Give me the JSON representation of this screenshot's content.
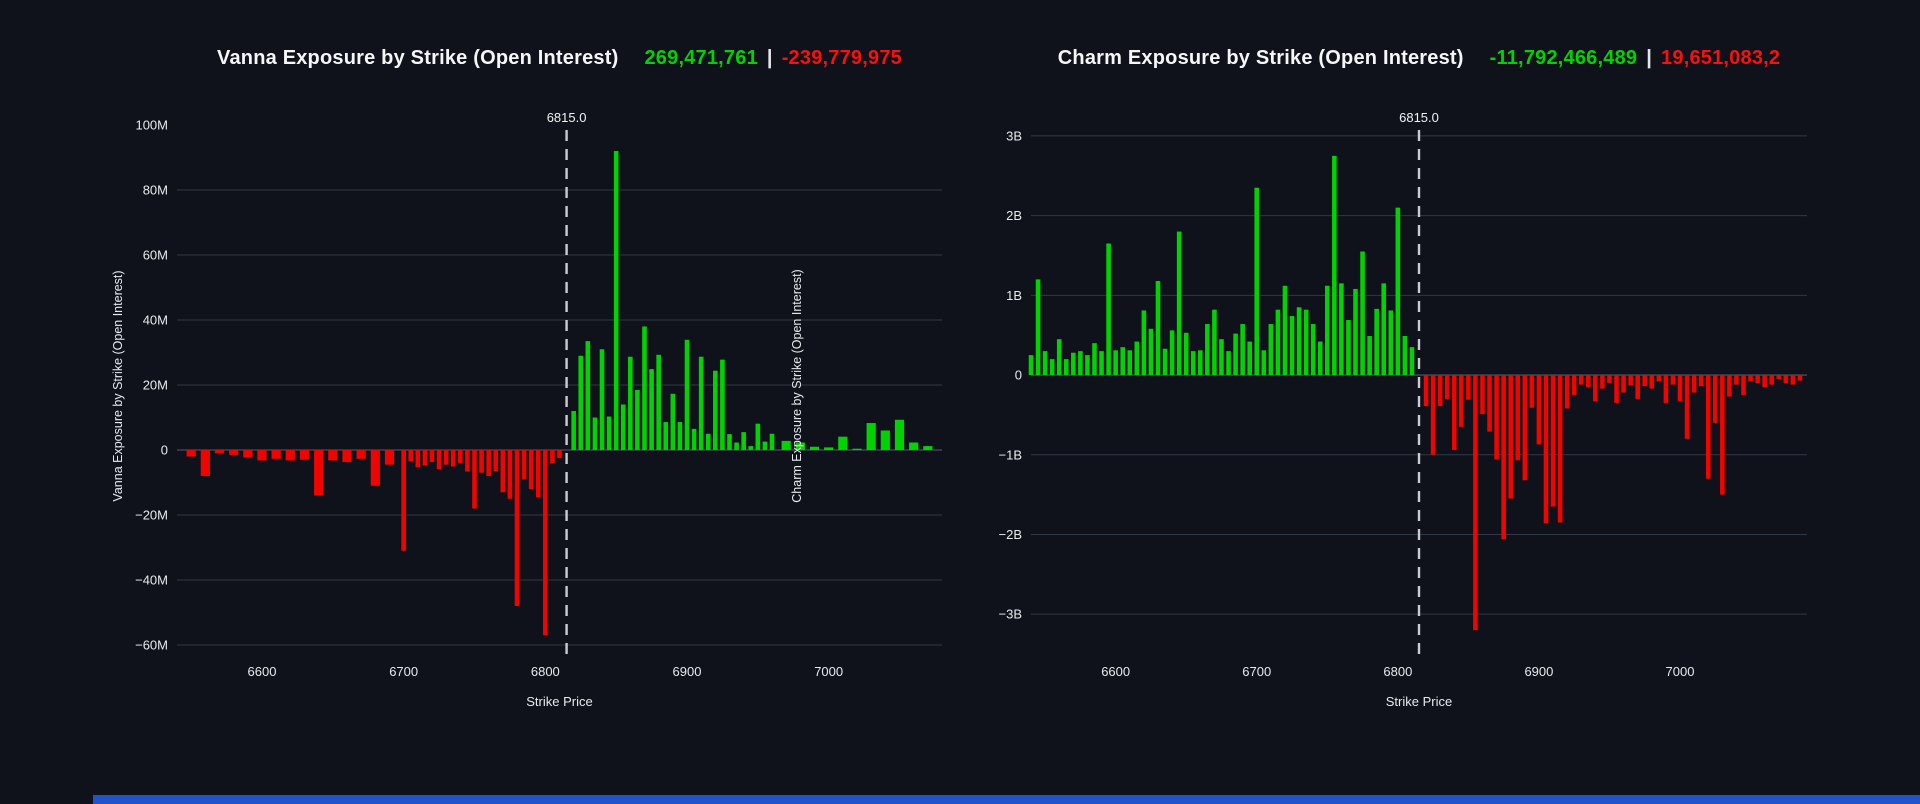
{
  "page": {
    "background": "#0f121a",
    "accent_bar_color": "#2153cd"
  },
  "charts": [
    {
      "title": "Vanna Exposure by Strike (Open Interest)",
      "total_green": "269,471,761",
      "separator": "|",
      "total_red": "-239,779,975",
      "y_axis_title": "Vanna Exposure by Strike (Open Interest)",
      "x_axis_title": "Strike Price",
      "spot_label": "6815.0",
      "spot_strike": 6815,
      "chart_data": {
        "type": "bar",
        "unit": "millions",
        "x_range": [
          6540,
          7080
        ],
        "y_range": [
          -64,
          104
        ],
        "positive_color": "#00d300",
        "negative_color": "#ef0400",
        "x_ticks": [
          {
            "value": 6600,
            "label": "6600"
          },
          {
            "value": 6700,
            "label": "6700"
          },
          {
            "value": 6800,
            "label": "6800"
          },
          {
            "value": 6900,
            "label": "6900"
          },
          {
            "value": 7000,
            "label": "7000"
          }
        ],
        "y_ticks": [
          {
            "value": 100,
            "label": "100M",
            "grid": false
          },
          {
            "value": 80,
            "label": "80M"
          },
          {
            "value": 60,
            "label": "60M"
          },
          {
            "value": 40,
            "label": "40M"
          },
          {
            "value": 20,
            "label": "20M"
          },
          {
            "value": 0,
            "label": "0"
          },
          {
            "value": -20,
            "label": "−20M"
          },
          {
            "value": -40,
            "label": "−40M"
          },
          {
            "value": -60,
            "label": "−60M"
          }
        ],
        "bars": [
          [
            6550,
            -2
          ],
          [
            6560,
            -8
          ],
          [
            6570,
            -1
          ],
          [
            6580,
            -1.5
          ],
          [
            6590,
            -2.3
          ],
          [
            6600,
            -3.2
          ],
          [
            6610,
            -2.7
          ],
          [
            6620,
            -3.2
          ],
          [
            6630,
            -3
          ],
          [
            6640,
            -14
          ],
          [
            6650,
            -3.2
          ],
          [
            6660,
            -3.7
          ],
          [
            6670,
            -2.7
          ],
          [
            6680,
            -11
          ],
          [
            6690,
            -4.5
          ],
          [
            6700,
            -31
          ],
          [
            6705,
            -3.5
          ],
          [
            6710,
            -5.3
          ],
          [
            6715,
            -4.8
          ],
          [
            6720,
            -3.7
          ],
          [
            6725,
            -5.9
          ],
          [
            6730,
            -4.5
          ],
          [
            6735,
            -5.1
          ],
          [
            6740,
            -4
          ],
          [
            6745,
            -6.6
          ],
          [
            6750,
            -18
          ],
          [
            6755,
            -7
          ],
          [
            6760,
            -8
          ],
          [
            6765,
            -6.5
          ],
          [
            6770,
            -13
          ],
          [
            6775,
            -15
          ],
          [
            6780,
            -48
          ],
          [
            6785,
            -9
          ],
          [
            6790,
            -12
          ],
          [
            6795,
            -14.5
          ],
          [
            6800,
            -57
          ],
          [
            6805,
            -4
          ],
          [
            6810,
            -2.5
          ],
          [
            6820,
            12
          ],
          [
            6825,
            29
          ],
          [
            6830,
            33.5
          ],
          [
            6835,
            10
          ],
          [
            6840,
            31
          ],
          [
            6845,
            10.3
          ],
          [
            6850,
            92
          ],
          [
            6855,
            14
          ],
          [
            6860,
            28.7
          ],
          [
            6865,
            18.5
          ],
          [
            6870,
            38
          ],
          [
            6875,
            24.9
          ],
          [
            6880,
            29.3
          ],
          [
            6885,
            8.6
          ],
          [
            6890,
            17.3
          ],
          [
            6895,
            8.6
          ],
          [
            6900,
            33.9
          ],
          [
            6905,
            6.5
          ],
          [
            6910,
            28.7
          ],
          [
            6915,
            5
          ],
          [
            6920,
            24.4
          ],
          [
            6925,
            27.8
          ],
          [
            6930,
            4.9
          ],
          [
            6935,
            2.3
          ],
          [
            6940,
            5.5
          ],
          [
            6945,
            1.2
          ],
          [
            6950,
            8.1
          ],
          [
            6955,
            2.6
          ],
          [
            6960,
            5
          ],
          [
            6970,
            2.8
          ],
          [
            6980,
            2.3
          ],
          [
            6990,
            1
          ],
          [
            7000,
            0.8
          ],
          [
            7010,
            4.1
          ],
          [
            7020,
            0.4
          ],
          [
            7030,
            8.3
          ],
          [
            7040,
            6
          ],
          [
            7050,
            9.3
          ],
          [
            7060,
            2.3
          ],
          [
            7070,
            1.2
          ]
        ]
      }
    },
    {
      "title": "Charm Exposure by Strike (Open Interest)",
      "total_green": "-11,792,466,489",
      "separator": "|",
      "total_red": "19,651,083,2",
      "y_axis_title": "Charm Exposure by Strike (Open Interest)",
      "x_axis_title": "Strike Price",
      "spot_label": "6815.0",
      "spot_strike": 6815,
      "chart_data": {
        "type": "bar",
        "unit": "billions",
        "x_range": [
          6540,
          7090
        ],
        "y_range": [
          -3.55,
          3.3
        ],
        "positive_color": "#00d300",
        "negative_color": "#ef0400",
        "x_ticks": [
          {
            "value": 6600,
            "label": "6600"
          },
          {
            "value": 6700,
            "label": "6700"
          },
          {
            "value": 6800,
            "label": "6800"
          },
          {
            "value": 6900,
            "label": "6900"
          },
          {
            "value": 7000,
            "label": "7000"
          }
        ],
        "y_ticks": [
          {
            "value": 3,
            "label": "3B"
          },
          {
            "value": 2,
            "label": "2B"
          },
          {
            "value": 1,
            "label": "1B"
          },
          {
            "value": 0,
            "label": "0"
          },
          {
            "value": -1,
            "label": "−1B"
          },
          {
            "value": -2,
            "label": "−2B"
          },
          {
            "value": -3,
            "label": "−3B"
          }
        ],
        "bars": [
          [
            6540,
            0.25
          ],
          [
            6545,
            1.2
          ],
          [
            6550,
            0.3
          ],
          [
            6555,
            0.2
          ],
          [
            6560,
            0.45
          ],
          [
            6565,
            0.2
          ],
          [
            6570,
            0.28
          ],
          [
            6575,
            0.3
          ],
          [
            6580,
            0.25
          ],
          [
            6585,
            0.4
          ],
          [
            6590,
            0.3
          ],
          [
            6595,
            1.65
          ],
          [
            6600,
            0.31
          ],
          [
            6605,
            0.35
          ],
          [
            6610,
            0.31
          ],
          [
            6615,
            0.42
          ],
          [
            6620,
            0.81
          ],
          [
            6625,
            0.58
          ],
          [
            6630,
            1.18
          ],
          [
            6635,
            0.33
          ],
          [
            6640,
            0.56
          ],
          [
            6645,
            1.8
          ],
          [
            6650,
            0.53
          ],
          [
            6655,
            0.3
          ],
          [
            6660,
            0.31
          ],
          [
            6665,
            0.64
          ],
          [
            6670,
            0.82
          ],
          [
            6675,
            0.45
          ],
          [
            6680,
            0.3
          ],
          [
            6685,
            0.52
          ],
          [
            6690,
            0.64
          ],
          [
            6695,
            0.42
          ],
          [
            6700,
            2.35
          ],
          [
            6705,
            0.31
          ],
          [
            6710,
            0.64
          ],
          [
            6715,
            0.82
          ],
          [
            6720,
            1.12
          ],
          [
            6725,
            0.74
          ],
          [
            6730,
            0.85
          ],
          [
            6735,
            0.82
          ],
          [
            6740,
            0.64
          ],
          [
            6745,
            0.42
          ],
          [
            6750,
            1.12
          ],
          [
            6755,
            2.75
          ],
          [
            6760,
            1.15
          ],
          [
            6765,
            0.69
          ],
          [
            6770,
            1.08
          ],
          [
            6775,
            1.55
          ],
          [
            6780,
            0.49
          ],
          [
            6785,
            0.83
          ],
          [
            6790,
            1.15
          ],
          [
            6795,
            0.81
          ],
          [
            6800,
            2.1
          ],
          [
            6805,
            0.49
          ],
          [
            6810,
            0.35
          ],
          [
            6820,
            -0.39
          ],
          [
            6825,
            -1.0
          ],
          [
            6830,
            -0.39
          ],
          [
            6835,
            -0.3
          ],
          [
            6840,
            -0.94
          ],
          [
            6845,
            -0.65
          ],
          [
            6850,
            -0.31
          ],
          [
            6855,
            -3.2
          ],
          [
            6860,
            -0.49
          ],
          [
            6865,
            -0.71
          ],
          [
            6870,
            -1.06
          ],
          [
            6875,
            -2.06
          ],
          [
            6880,
            -1.55
          ],
          [
            6885,
            -1.07
          ],
          [
            6890,
            -1.32
          ],
          [
            6895,
            -0.41
          ],
          [
            6900,
            -0.87
          ],
          [
            6905,
            -1.86
          ],
          [
            6910,
            -1.65
          ],
          [
            6915,
            -1.85
          ],
          [
            6920,
            -0.42
          ],
          [
            6925,
            -0.25
          ],
          [
            6930,
            -0.12
          ],
          [
            6935,
            -0.15
          ],
          [
            6940,
            -0.33
          ],
          [
            6945,
            -0.17
          ],
          [
            6950,
            -0.1
          ],
          [
            6955,
            -0.35
          ],
          [
            6960,
            -0.22
          ],
          [
            6965,
            -0.13
          ],
          [
            6970,
            -0.3
          ],
          [
            6975,
            -0.14
          ],
          [
            6980,
            -0.17
          ],
          [
            6985,
            -0.08
          ],
          [
            6990,
            -0.35
          ],
          [
            6995,
            -0.12
          ],
          [
            7000,
            -0.33
          ],
          [
            7005,
            -0.8
          ],
          [
            7010,
            -0.22
          ],
          [
            7015,
            -0.14
          ],
          [
            7020,
            -1.3
          ],
          [
            7025,
            -0.6
          ],
          [
            7030,
            -1.5
          ],
          [
            7035,
            -0.27
          ],
          [
            7040,
            -0.12
          ],
          [
            7045,
            -0.25
          ],
          [
            7050,
            -0.08
          ],
          [
            7055,
            -0.1
          ],
          [
            7060,
            -0.15
          ],
          [
            7065,
            -0.12
          ],
          [
            7070,
            -0.05
          ],
          [
            7075,
            -0.1
          ],
          [
            7080,
            -0.12
          ],
          [
            7085,
            -0.07
          ]
        ]
      }
    }
  ]
}
